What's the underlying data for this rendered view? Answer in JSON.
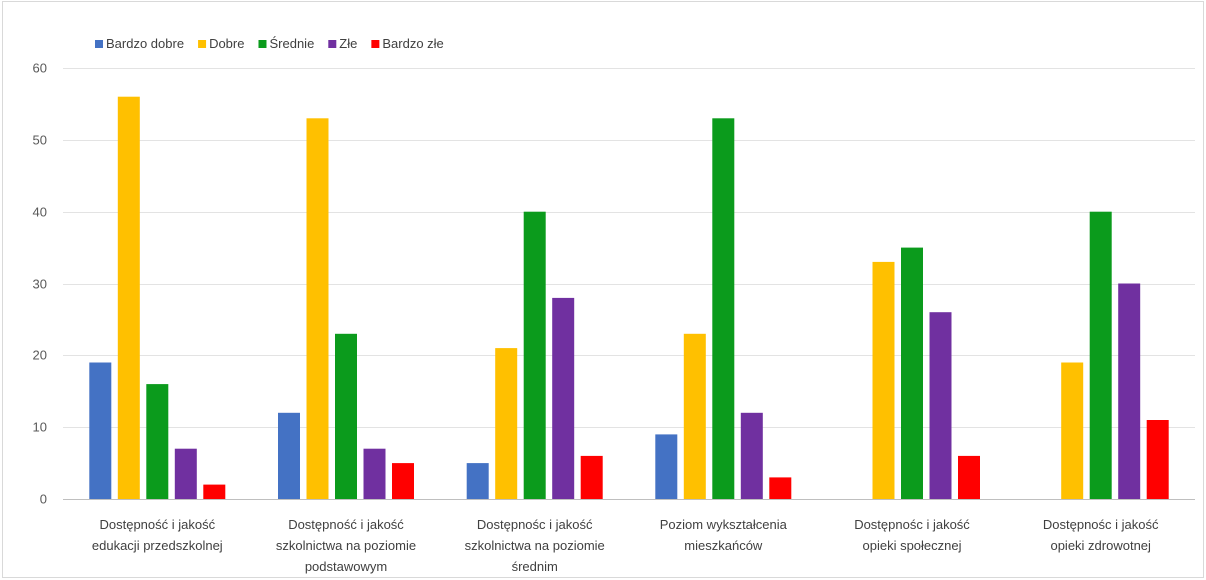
{
  "chart_data": {
    "type": "bar",
    "title": "",
    "xlabel": "",
    "ylabel": "",
    "ylim": [
      0,
      60
    ],
    "yticks": [
      0,
      10,
      20,
      30,
      40,
      50,
      60
    ],
    "grid": true,
    "legend_position": "top-left",
    "categories": [
      [
        "Dostępność i jakość",
        "edukacji przedszkolnej"
      ],
      [
        "Dostępność i jakość",
        "szkolnictwa na poziomie",
        "podstawowym"
      ],
      [
        "Dostępnośc i jakość",
        "szkolnictwa na poziomie",
        "średnim"
      ],
      [
        "Poziom wykształcenia",
        "mieszkańców"
      ],
      [
        "Dostępnośc i jakość",
        "opieki społecznej"
      ],
      [
        "Dostępnośc i jakość",
        "opieki zdrowotnej"
      ]
    ],
    "series": [
      {
        "name": "Bardzo dobre",
        "color": "#4472C4",
        "values": [
          19,
          12,
          5,
          9,
          0,
          0
        ]
      },
      {
        "name": "Dobre",
        "color": "#FFC000",
        "values": [
          56,
          53,
          21,
          23,
          33,
          19
        ]
      },
      {
        "name": "Średnie",
        "color": "#0B9B1C",
        "values": [
          16,
          23,
          40,
          53,
          35,
          40
        ]
      },
      {
        "name": "Złe",
        "color": "#7030A0",
        "values": [
          7,
          7,
          28,
          12,
          26,
          30
        ]
      },
      {
        "name": "Bardzo złe",
        "color": "#FF0000",
        "values": [
          2,
          5,
          6,
          3,
          6,
          11
        ]
      }
    ]
  }
}
